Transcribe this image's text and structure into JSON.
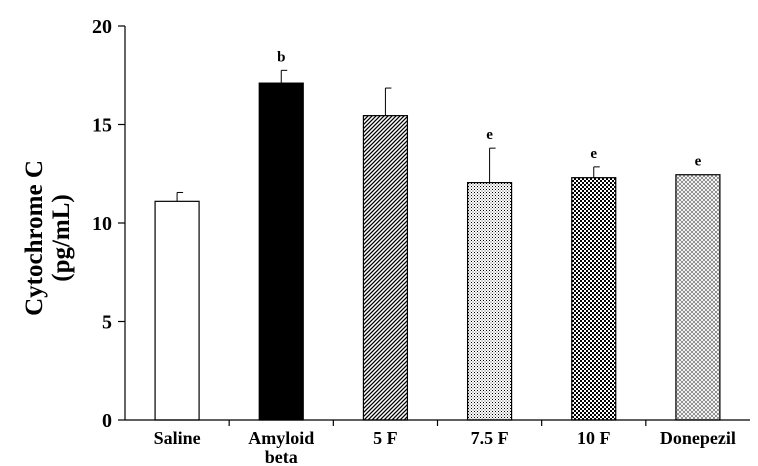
{
  "chart_data": {
    "type": "bar",
    "ylabel_line1": "Cytochrome C",
    "ylabel_line2": "(pg/mL)",
    "ylim": [
      0,
      20
    ],
    "yticks": [
      0,
      5,
      10,
      15,
      20
    ],
    "categories": [
      "Saline",
      "Amyloid beta",
      "5 F",
      "7.5 F",
      "10 F",
      "Donepezil"
    ],
    "category_lines": [
      [
        "Saline"
      ],
      [
        "Amyloid",
        "beta"
      ],
      [
        "5 F"
      ],
      [
        "7.5 F"
      ],
      [
        "10 F"
      ],
      [
        "Donepezil"
      ]
    ],
    "values": [
      11.1,
      17.1,
      15.45,
      12.05,
      12.3,
      12.45
    ],
    "errors": [
      0.45,
      0.65,
      1.4,
      1.75,
      0.55,
      0
    ],
    "annotations": [
      "",
      "b",
      "",
      "e",
      "e",
      "e"
    ],
    "patterns": [
      "empty",
      "solid",
      "diagonal",
      "stipple",
      "checker",
      "lattice"
    ],
    "colors": {
      "bar_outline": "#000000",
      "fill_solid": "#000000",
      "fill_empty": "#ffffff"
    }
  }
}
